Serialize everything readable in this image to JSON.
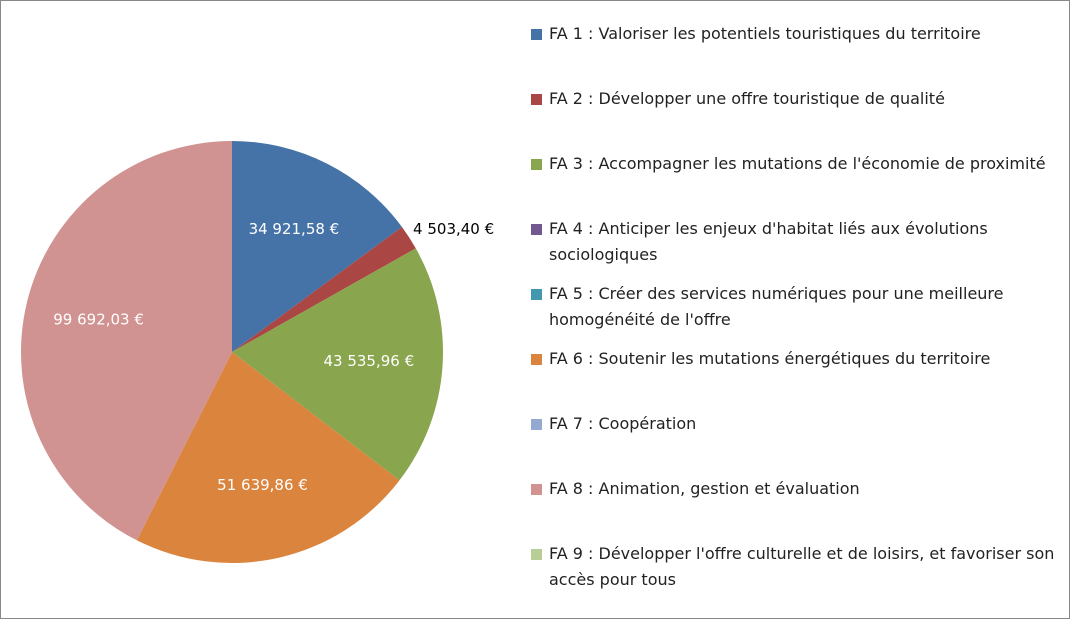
{
  "chart_data": {
    "type": "pie",
    "categories": [
      "FA 1 : Valoriser les potentiels touristiques du territoire",
      "FA 2 : Développer une offre touristique de qualité",
      "FA 3 : Accompagner les mutations de l'économie de proximité",
      "FA 4 : Anticiper les enjeux d'habitat liés aux évolutions sociologiques",
      "FA 5 : Créer des services numériques pour une meilleure homogénéité de l'offre",
      "FA 6 : Soutenir les mutations énergétiques du territoire",
      "FA 7 : Coopération",
      "FA 8 : Animation, gestion et évaluation",
      "FA 9 : Développer l'offre culturelle et de loisirs, et favoriser son accès pour tous"
    ],
    "values": [
      34921.58,
      4503.4,
      43535.96,
      0,
      0,
      51639.86,
      0,
      99692.03,
      0
    ],
    "value_labels": [
      "34 921,58 €",
      "4 503,40 €",
      "43 535,96 €",
      null,
      null,
      "51 639,86 €",
      null,
      "99 692,03 €",
      null
    ],
    "colors": [
      "#4572a7",
      "#aa4643",
      "#89a54e",
      "#71588f",
      "#4198af",
      "#db843d",
      "#93a9cf",
      "#d19392",
      "#b9cd96"
    ],
    "legend": "right"
  }
}
